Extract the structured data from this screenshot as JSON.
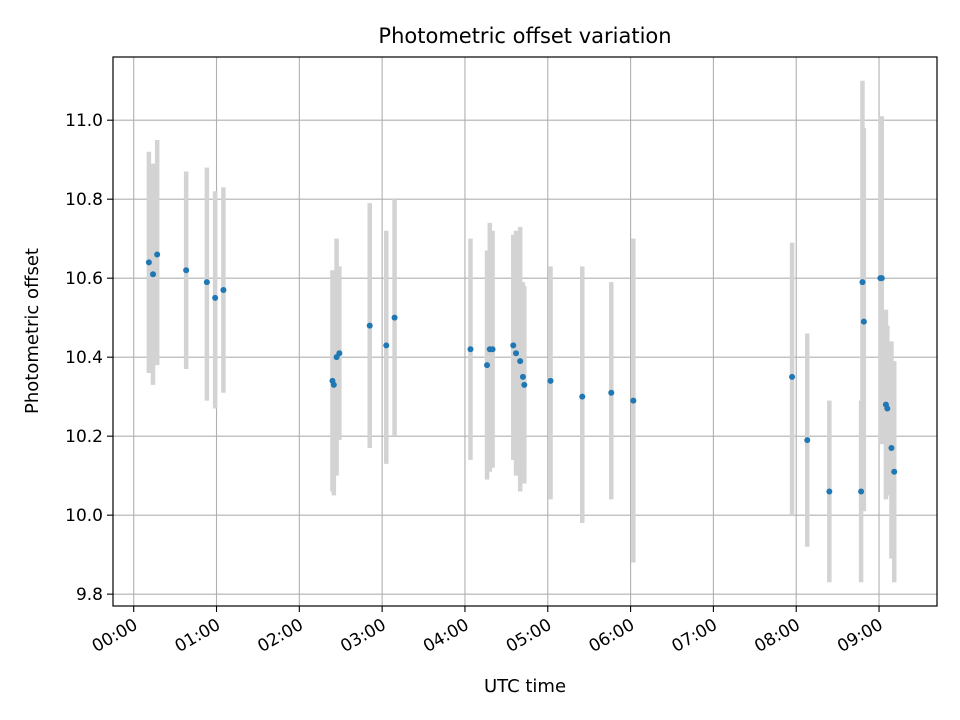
{
  "chart_data": {
    "type": "scatter",
    "title": "Photometric offset variation",
    "xlabel": "UTC time",
    "ylabel": "Photometric offset",
    "x_unit": "hours",
    "xlim": [
      "-00:15",
      "09:42"
    ],
    "ylim": [
      9.77,
      11.16
    ],
    "x_ticks": [
      "00:00",
      "01:00",
      "02:00",
      "03:00",
      "04:00",
      "05:00",
      "06:00",
      "07:00",
      "08:00",
      "09:00"
    ],
    "y_ticks": [
      "9.8",
      "10.0",
      "10.2",
      "10.4",
      "10.6",
      "10.8",
      "11.0"
    ],
    "grid": true,
    "marker_color": "#1f77b4",
    "errorbar_color": "#d3d3d3",
    "points": [
      {
        "x": "00:11",
        "y": 10.64,
        "lo": 10.36,
        "hi": 10.92
      },
      {
        "x": "00:14",
        "y": 10.61,
        "lo": 10.33,
        "hi": 10.89
      },
      {
        "x": "00:17",
        "y": 10.66,
        "lo": 10.38,
        "hi": 10.95
      },
      {
        "x": "00:38",
        "y": 10.62,
        "lo": 10.37,
        "hi": 10.87
      },
      {
        "x": "00:53",
        "y": 10.59,
        "lo": 10.29,
        "hi": 10.88
      },
      {
        "x": "00:59",
        "y": 10.55,
        "lo": 10.27,
        "hi": 10.82
      },
      {
        "x": "01:05",
        "y": 10.57,
        "lo": 10.31,
        "hi": 10.83
      },
      {
        "x": "02:24",
        "y": 10.34,
        "lo": 10.06,
        "hi": 10.62
      },
      {
        "x": "02:25",
        "y": 10.33,
        "lo": 10.05,
        "hi": 10.6
      },
      {
        "x": "02:27",
        "y": 10.4,
        "lo": 10.1,
        "hi": 10.7
      },
      {
        "x": "02:29",
        "y": 10.41,
        "lo": 10.19,
        "hi": 10.63
      },
      {
        "x": "02:51",
        "y": 10.48,
        "lo": 10.17,
        "hi": 10.79
      },
      {
        "x": "03:03",
        "y": 10.43,
        "lo": 10.13,
        "hi": 10.72
      },
      {
        "x": "03:09",
        "y": 10.5,
        "lo": 10.2,
        "hi": 10.8
      },
      {
        "x": "04:04",
        "y": 10.42,
        "lo": 10.14,
        "hi": 10.7
      },
      {
        "x": "04:16",
        "y": 10.38,
        "lo": 10.09,
        "hi": 10.67
      },
      {
        "x": "04:18",
        "y": 10.42,
        "lo": 10.11,
        "hi": 10.74
      },
      {
        "x": "04:20",
        "y": 10.42,
        "lo": 10.12,
        "hi": 10.72
      },
      {
        "x": "04:35",
        "y": 10.43,
        "lo": 10.14,
        "hi": 10.71
      },
      {
        "x": "04:37",
        "y": 10.41,
        "lo": 10.1,
        "hi": 10.72
      },
      {
        "x": "04:40",
        "y": 10.39,
        "lo": 10.06,
        "hi": 10.73
      },
      {
        "x": "04:42",
        "y": 10.35,
        "lo": 10.11,
        "hi": 10.59
      },
      {
        "x": "04:43",
        "y": 10.33,
        "lo": 10.08,
        "hi": 10.58
      },
      {
        "x": "05:02",
        "y": 10.34,
        "lo": 10.04,
        "hi": 10.63
      },
      {
        "x": "05:25",
        "y": 10.3,
        "lo": 9.98,
        "hi": 10.63
      },
      {
        "x": "05:46",
        "y": 10.31,
        "lo": 10.04,
        "hi": 10.59
      },
      {
        "x": "06:02",
        "y": 10.29,
        "lo": 9.88,
        "hi": 10.7
      },
      {
        "x": "07:57",
        "y": 10.35,
        "lo": 10.0,
        "hi": 10.69
      },
      {
        "x": "08:08",
        "y": 10.19,
        "lo": 9.92,
        "hi": 10.46
      },
      {
        "x": "08:24",
        "y": 10.06,
        "lo": 9.83,
        "hi": 10.29
      },
      {
        "x": "08:47",
        "y": 10.06,
        "lo": 9.83,
        "hi": 10.29
      },
      {
        "x": "08:48",
        "y": 10.59,
        "lo": 10.08,
        "hi": 11.1
      },
      {
        "x": "08:49",
        "y": 10.49,
        "lo": 10.01,
        "hi": 10.98
      },
      {
        "x": "09:01",
        "y": 10.6,
        "lo": 10.18,
        "hi": 11.01
      },
      {
        "x": "09:02",
        "y": 10.6,
        "lo": 10.18,
        "hi": 11.01
      },
      {
        "x": "09:05",
        "y": 10.28,
        "lo": 10.04,
        "hi": 10.52
      },
      {
        "x": "09:06",
        "y": 10.27,
        "lo": 10.05,
        "hi": 10.48
      },
      {
        "x": "09:09",
        "y": 10.17,
        "lo": 9.89,
        "hi": 10.44
      },
      {
        "x": "09:11",
        "y": 10.11,
        "lo": 9.83,
        "hi": 10.39
      }
    ]
  }
}
